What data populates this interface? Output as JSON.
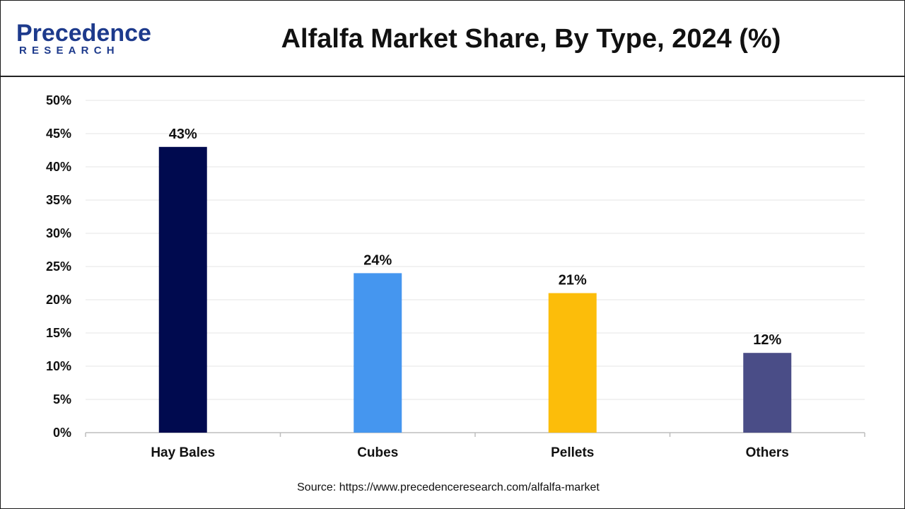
{
  "brand": {
    "name": "Precedence",
    "sub": "RESEARCH",
    "color": "#1d3a8c"
  },
  "title": "Alfalfa Market Share, By Type, 2024 (%)",
  "source": "Source: https://www.precedenceresearch.com/alfalfa-market",
  "chart_data": {
    "type": "bar",
    "title": "Alfalfa Market Share, By Type, 2024 (%)",
    "xlabel": "",
    "ylabel": "",
    "categories": [
      "Hay Bales",
      "Cubes",
      "Pellets",
      "Others"
    ],
    "values": [
      43,
      24,
      21,
      12
    ],
    "data_labels": [
      "43%",
      "24%",
      "21%",
      "12%"
    ],
    "colors": [
      "#000a4f",
      "#4596ef",
      "#fcbd0a",
      "#4a4d87"
    ],
    "ylim": [
      0,
      50
    ],
    "yticks": [
      0,
      5,
      10,
      15,
      20,
      25,
      30,
      35,
      40,
      45,
      50
    ],
    "ytick_labels": [
      "0%",
      "5%",
      "10%",
      "15%",
      "20%",
      "25%",
      "30%",
      "35%",
      "40%",
      "45%",
      "50%"
    ],
    "grid": true,
    "legend": "none"
  }
}
